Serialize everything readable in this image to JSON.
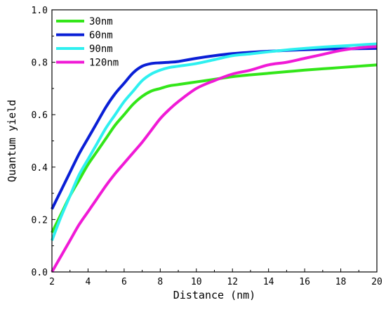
{
  "chart_data": {
    "type": "line",
    "title": "",
    "xlabel": "Distance (nm)",
    "ylabel": "Quantum yield",
    "xlim": [
      2,
      20
    ],
    "ylim": [
      0.0,
      1.0
    ],
    "xticks": [
      2,
      4,
      6,
      8,
      10,
      12,
      14,
      16,
      18,
      20
    ],
    "yticks": [
      0.0,
      0.2,
      0.4,
      0.6,
      0.8,
      1.0
    ],
    "xtick_labels": [
      "2",
      "4",
      "6",
      "8",
      "10",
      "12",
      "14",
      "16",
      "18",
      "20"
    ],
    "ytick_labels": [
      "0.0",
      "0.2",
      "0.4",
      "0.6",
      "0.8",
      "1.0"
    ],
    "grid": false,
    "legend_position": "top-left",
    "series": [
      {
        "name": "30nm",
        "color": "#33e619",
        "x": [
          2,
          2.5,
          3,
          3.5,
          4,
          4.5,
          5,
          5.5,
          6,
          6.5,
          7,
          7.5,
          8,
          8.5,
          9,
          10,
          11,
          12,
          13,
          14,
          15,
          16,
          17,
          18,
          19,
          20
        ],
        "y": [
          0.15,
          0.22,
          0.29,
          0.35,
          0.41,
          0.46,
          0.51,
          0.56,
          0.6,
          0.64,
          0.67,
          0.69,
          0.7,
          0.71,
          0.715,
          0.725,
          0.735,
          0.745,
          0.752,
          0.758,
          0.764,
          0.77,
          0.775,
          0.78,
          0.785,
          0.79
        ]
      },
      {
        "name": "60nm",
        "color": "#0a1fd6",
        "x": [
          2,
          2.5,
          3,
          3.5,
          4,
          4.5,
          5,
          5.5,
          6,
          6.5,
          7,
          7.5,
          8,
          8.5,
          9,
          10,
          11,
          12,
          13,
          14,
          15,
          16,
          17,
          18,
          19,
          20
        ],
        "y": [
          0.24,
          0.31,
          0.38,
          0.45,
          0.51,
          0.57,
          0.63,
          0.68,
          0.72,
          0.76,
          0.785,
          0.795,
          0.798,
          0.8,
          0.803,
          0.815,
          0.825,
          0.833,
          0.838,
          0.842,
          0.845,
          0.848,
          0.85,
          0.851,
          0.852,
          0.853
        ]
      },
      {
        "name": "90nm",
        "color": "#2ef0f0",
        "x": [
          2,
          2.5,
          3,
          3.5,
          4,
          4.5,
          5,
          5.5,
          6,
          6.5,
          7,
          7.5,
          8,
          8.5,
          9,
          10,
          11,
          12,
          13,
          14,
          15,
          16,
          17,
          18,
          19,
          20
        ],
        "y": [
          0.12,
          0.21,
          0.29,
          0.37,
          0.43,
          0.49,
          0.55,
          0.6,
          0.65,
          0.69,
          0.73,
          0.755,
          0.77,
          0.78,
          0.785,
          0.795,
          0.81,
          0.825,
          0.832,
          0.84,
          0.847,
          0.853,
          0.858,
          0.862,
          0.866,
          0.87
        ]
      },
      {
        "name": "120nm",
        "color": "#f01ad6",
        "x": [
          2,
          2.5,
          3,
          3.5,
          4,
          4.5,
          5,
          5.5,
          6,
          6.5,
          7,
          7.5,
          8,
          8.5,
          9,
          10,
          11,
          12,
          13,
          14,
          15,
          16,
          17,
          18,
          19,
          20
        ],
        "y": [
          0.0,
          0.06,
          0.12,
          0.18,
          0.23,
          0.28,
          0.33,
          0.375,
          0.415,
          0.455,
          0.495,
          0.54,
          0.585,
          0.62,
          0.65,
          0.7,
          0.73,
          0.755,
          0.77,
          0.79,
          0.8,
          0.815,
          0.83,
          0.845,
          0.855,
          0.86
        ]
      }
    ]
  }
}
